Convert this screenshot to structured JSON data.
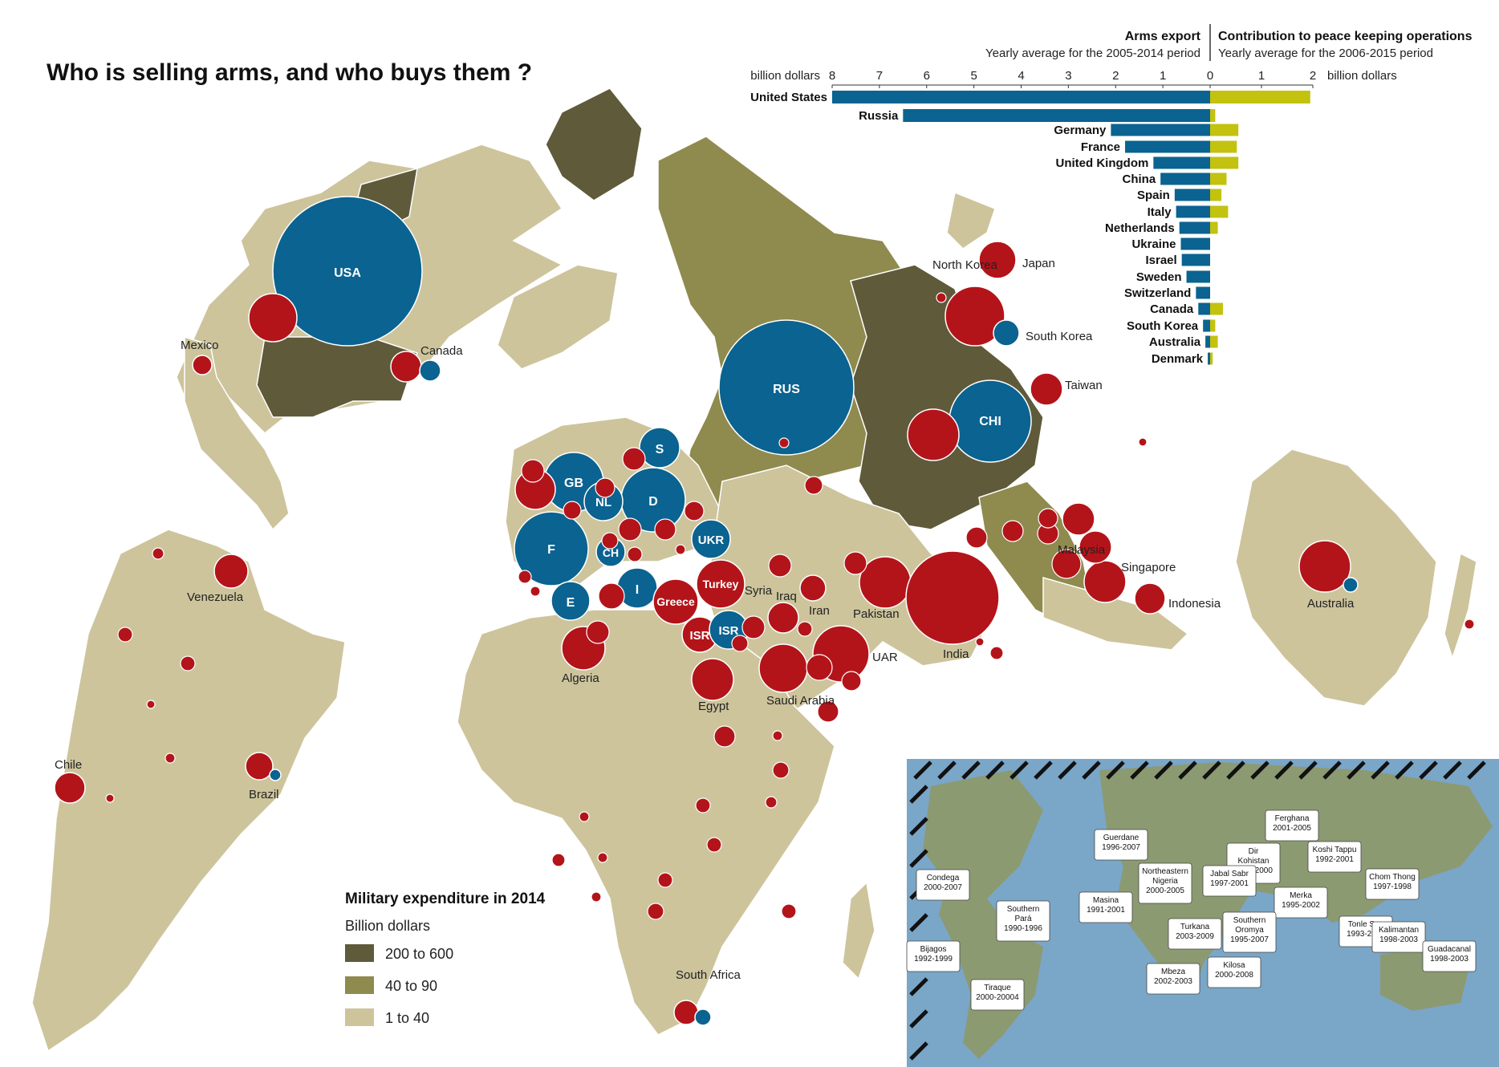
{
  "title": "Who is selling arms, and who buys them ?",
  "chart_data": {
    "type": "bar",
    "subtype": "diverging-horizontal",
    "left_header": "Arms export",
    "left_subheader": "Yearly average for the 2005-2014 period",
    "right_header": "Contribution to peace keeping operations",
    "right_subheader": "Yearly average for the 2006-2015 period",
    "left_axis_label": "billion dollars",
    "right_axis_label": "billion dollars",
    "left_ticks": [
      "8",
      "7",
      "6",
      "5",
      "4",
      "3",
      "2",
      "1",
      "0"
    ],
    "right_ticks": [
      "1",
      "2"
    ],
    "left_xlim": [
      0,
      8
    ],
    "right_xlim": [
      0,
      2
    ],
    "categories": [
      "United States",
      "Russia",
      "Germany",
      "France",
      "United Kingdom",
      "China",
      "Spain",
      "Italy",
      "Netherlands",
      "Ukraine",
      "Israel",
      "Sweden",
      "Switzerland",
      "Canada",
      "South Korea",
      "Australia",
      "Denmark"
    ],
    "series": [
      {
        "name": "Arms export",
        "color": "#0a6390",
        "values": [
          8.0,
          6.5,
          2.1,
          1.8,
          1.2,
          1.05,
          0.75,
          0.72,
          0.65,
          0.62,
          0.6,
          0.5,
          0.3,
          0.25,
          0.15,
          0.1,
          0.05
        ]
      },
      {
        "name": "Contribution to peace keeping operations",
        "color": "#c3c20f",
        "values": [
          1.95,
          0.1,
          0.55,
          0.52,
          0.55,
          0.32,
          0.22,
          0.35,
          0.15,
          0.0,
          0.0,
          0.0,
          0.0,
          0.25,
          0.1,
          0.15,
          0.05
        ]
      }
    ]
  },
  "legend": {
    "title": "Military expenditure in 2014",
    "subtitle": "Billion dollars",
    "items": [
      {
        "label": "200 to 600",
        "color": "#5e5a3a"
      },
      {
        "label": "40 to 90",
        "color": "#8f8a4e"
      },
      {
        "label": "1 to 40",
        "color": "#cdc49c"
      }
    ]
  },
  "colors": {
    "exporter": "#0a6390",
    "importer": "#b3141a",
    "ocean": "#ffffff"
  },
  "map": {
    "exporter_labels": [
      "USA",
      "RUS",
      "CHI",
      "S",
      "GB",
      "NL",
      "D",
      "F",
      "CH",
      "UKR",
      "E",
      "I",
      "ISR"
    ],
    "importer_labels": [
      "Turkey",
      "Greece",
      "ISR"
    ],
    "country_labels": [
      "Mexico",
      "Canada",
      "Venezuela",
      "Chile",
      "Brazil",
      "Algeria",
      "Egypt",
      "Syria",
      "Iraq",
      "Iran",
      "Pakistan",
      "India",
      "UAR",
      "Saudi Arabia",
      "South Africa",
      "Japan",
      "North Korea",
      "South Korea",
      "Taiwan",
      "Malaysia",
      "Singapore",
      "Indonesia",
      "Australia"
    ]
  },
  "inset": {
    "labels": [
      {
        "name": "Guerdane",
        "years": "1996-2007"
      },
      {
        "name": "Ferghana",
        "years": "2001-2005"
      },
      {
        "name": "Koshi Tappu",
        "years": "1992-2001"
      },
      {
        "name": "Dir Kohistan",
        "years": "1993-2000"
      },
      {
        "name": "Condega",
        "years": "2000-2007"
      },
      {
        "name": "Northeastern Nigeria",
        "years": "2000-2005"
      },
      {
        "name": "Jabal Sabr",
        "years": "1997-2001"
      },
      {
        "name": "Chom Thong",
        "years": "1997-1998"
      },
      {
        "name": "Masina",
        "years": "1991-2001"
      },
      {
        "name": "Merka",
        "years": "1995-2002"
      },
      {
        "name": "Southern Pará",
        "years": "1990-1996"
      },
      {
        "name": "Turkana",
        "years": "2003-2009"
      },
      {
        "name": "Southern Oromya",
        "years": "1995-2007"
      },
      {
        "name": "Tonle Sap",
        "years": "1993-2001"
      },
      {
        "name": "Kalimantan",
        "years": "1998-2003"
      },
      {
        "name": "Bijagos",
        "years": "1992-1999"
      },
      {
        "name": "Guadacanal",
        "years": "1998-2003"
      },
      {
        "name": "Mbeza",
        "years": "2002-2003"
      },
      {
        "name": "Kilosa",
        "years": "2000-2008"
      },
      {
        "name": "Tiraque",
        "years": "2000-20004"
      }
    ]
  }
}
